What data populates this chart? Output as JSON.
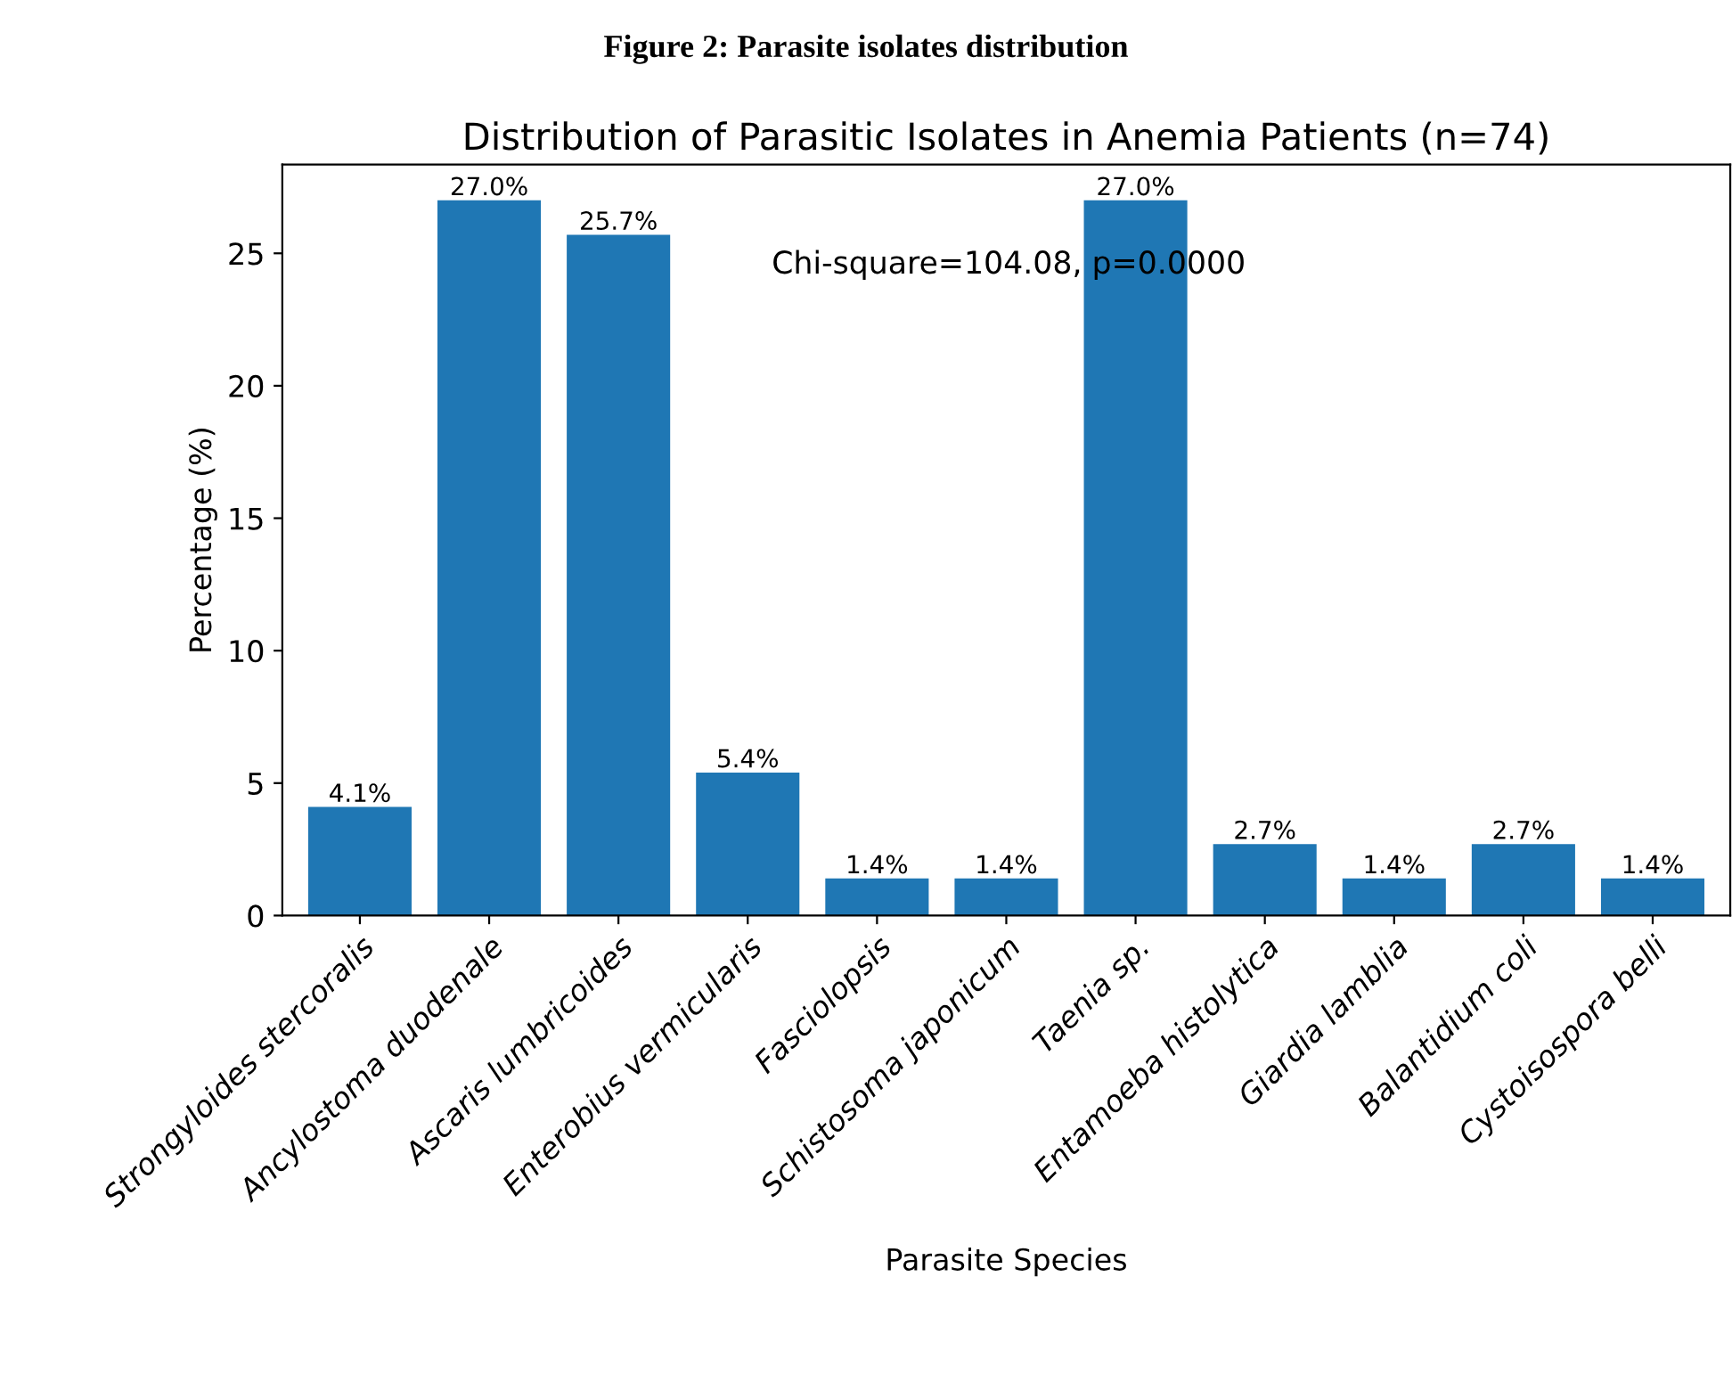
{
  "chart_data": {
    "type": "bar",
    "title": "Figure 2: Parasite isolates distribution",
    "subtitle": "Distribution of Parasitic Isolates in Anemia Patients (n=74)",
    "xlabel": "Parasite Species",
    "ylabel": "Percentage (%)",
    "categories": [
      "Strongyloides stercoralis",
      "Ancylostoma duodenale",
      "Ascaris lumbricoides",
      "Enterobius vermicularis",
      "Fasciolopsis",
      "Schistosoma japonicum",
      "Taenia sp.",
      "Entamoeba histolytica",
      "Giardia lamblia",
      "Balantidium coli",
      "Cystoisospora belli"
    ],
    "values": [
      4.1,
      27.0,
      25.7,
      5.4,
      1.4,
      1.4,
      27.0,
      2.7,
      1.4,
      2.7,
      1.4
    ],
    "value_labels": [
      "4.1%",
      "27.0%",
      "25.7%",
      "5.4%",
      "1.4%",
      "1.4%",
      "27.0%",
      "2.7%",
      "1.4%",
      "2.7%",
      "1.4%"
    ],
    "color": "#1f77b4",
    "ylim": [
      0,
      28.35
    ],
    "yticks": [
      0,
      5,
      10,
      15,
      20,
      25
    ],
    "annotations": [
      "Chi-square=104.08, p=0.0000"
    ],
    "grid": false
  }
}
